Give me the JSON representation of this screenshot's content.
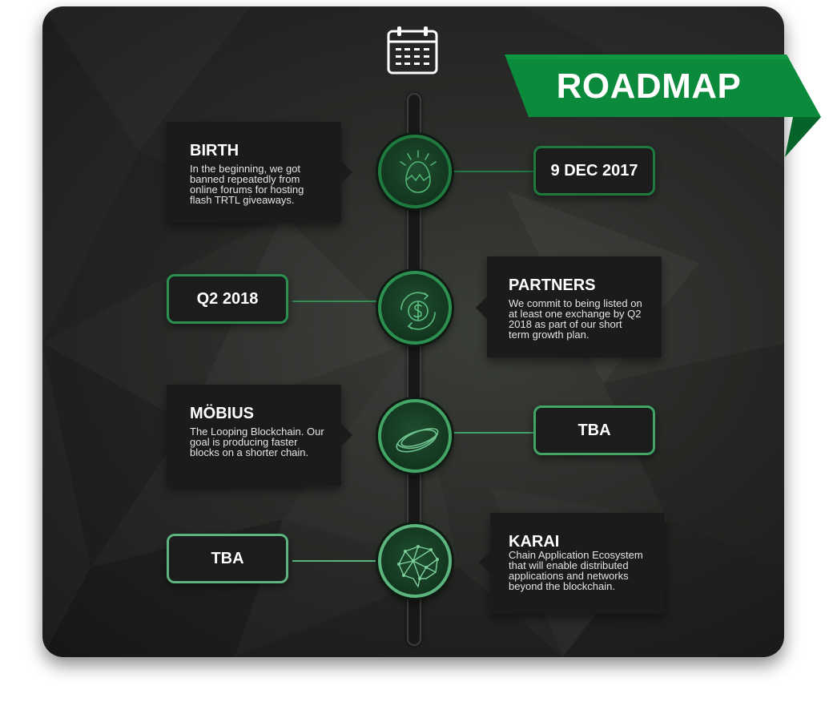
{
  "banner": {
    "title": "ROADMAP",
    "color": "#0b8a3c",
    "fold_color": "#06642a"
  },
  "icons": {
    "header": "calendar-icon",
    "milestones": [
      "egg-hatching-icon",
      "dollar-cycle-icon",
      "mobius-ring-icon",
      "brain-network-icon"
    ]
  },
  "accent_colors": {
    "milestone_1": "#1e7a3e",
    "milestone_2": "#2b9050",
    "milestone_3": "#42a566",
    "milestone_4": "#5cb57d"
  },
  "milestones": [
    {
      "title": "BIRTH",
      "description": "In the beginning, we got banned repeatedly from online forums for hosting flash TRTL giveaways.",
      "date": "9 DEC 2017"
    },
    {
      "title": "PARTNERS",
      "description": "We commit to being listed on at least one exchange by Q2 2018 as part of our short term growth plan.",
      "date": "Q2 2018"
    },
    {
      "title": "MÖBIUS",
      "description": "The Looping Blockchain. Our goal is producing faster blocks on a shorter chain.",
      "date": "TBA"
    },
    {
      "title": "KARAI",
      "description": "Chain Application Ecosystem that will enable distributed applications and networks beyond the blockchain.",
      "date": "TBA"
    }
  ]
}
